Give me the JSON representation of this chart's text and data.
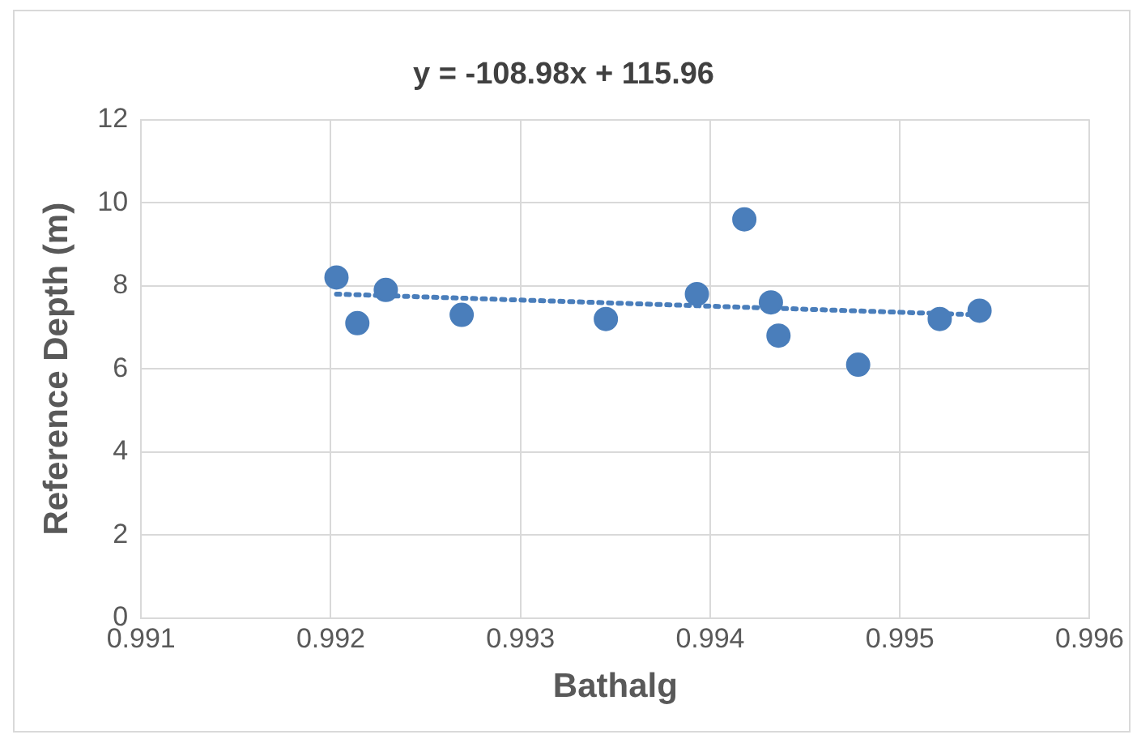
{
  "chart_data": {
    "type": "scatter",
    "title": "y = -108.98x + 115.96",
    "xlabel": "Bathalg",
    "ylabel": "Reference Depth (m)",
    "x": [
      0.99203,
      0.99214,
      0.99229,
      0.99269,
      0.99345,
      0.99393,
      0.99418,
      0.99432,
      0.99436,
      0.99478,
      0.99521,
      0.99542
    ],
    "series": [
      {
        "color": "#4a7ebb",
        "marker": "circle",
        "values": [
          8.2,
          7.1,
          7.9,
          7.3,
          7.2,
          7.8,
          9.6,
          7.6,
          6.8,
          6.1,
          7.2,
          7.4
        ]
      },
      {
        "type": "line",
        "color": "#4a7ebb",
        "marker": "none",
        "line_style": "dotted",
        "x": [
          0.99203,
          0.99542
        ],
        "values": [
          7.8,
          7.3
        ]
      }
    ],
    "xlim": [
      0.991,
      0.996
    ],
    "xticks": [
      0.991,
      0.992,
      0.993,
      0.994,
      0.995,
      0.996
    ],
    "ylim": [
      0,
      12
    ],
    "yticks": [
      0,
      2,
      4,
      6,
      8,
      10,
      12
    ],
    "grid": true,
    "legend": false
  }
}
